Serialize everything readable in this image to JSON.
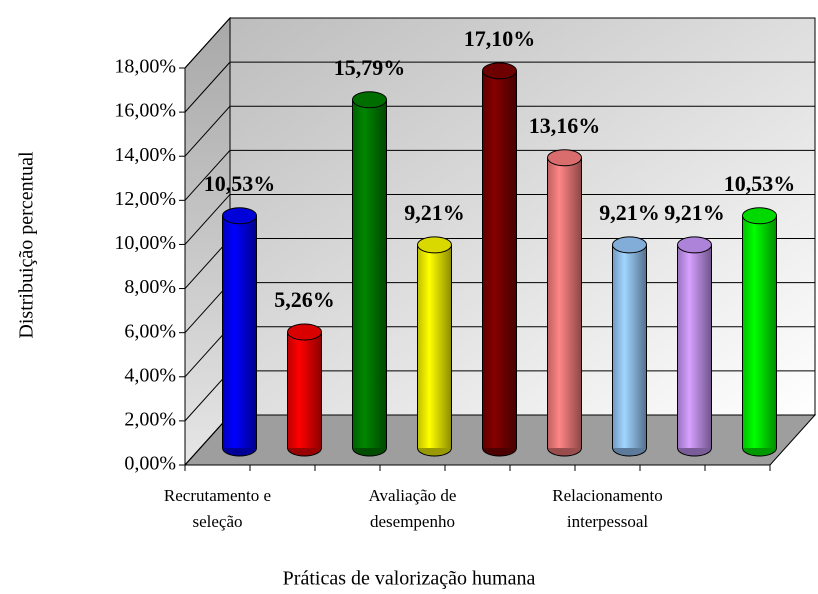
{
  "chart_data": {
    "type": "bar3d",
    "y_axis_label": "Distribuição percentual",
    "x_axis_label": "Práticas de valorização humana",
    "categories": [
      "Recrutamento e seleção",
      null,
      null,
      "Avaliação de desempenho",
      null,
      null,
      "Relacionamento interpessoal",
      null,
      null
    ],
    "values": [
      10.53,
      5.26,
      15.79,
      9.21,
      17.1,
      13.16,
      9.21,
      9.21,
      10.53
    ],
    "value_labels": [
      "10,53%",
      "5,26%",
      "15,79%",
      "9,21%",
      "17,10%",
      "13,16%",
      "9,21%",
      "9,21%",
      "10,53%"
    ],
    "colors": [
      "#0000ff",
      "#ff0000",
      "#008000",
      "#ffff00",
      "#800000",
      "#ff8080",
      "#99ccff",
      "#cc99ff",
      "#00ff00"
    ],
    "ylim": [
      0,
      18
    ],
    "yticks": [
      {
        "value": 0,
        "label": "0,00%"
      },
      {
        "value": 2,
        "label": "2,00%"
      },
      {
        "value": 4,
        "label": "4,00%"
      },
      {
        "value": 6,
        "label": "6,00%"
      },
      {
        "value": 8,
        "label": "8,00%"
      },
      {
        "value": 10,
        "label": "10,00%"
      },
      {
        "value": 12,
        "label": "12,00%"
      },
      {
        "value": 14,
        "label": "14,00%"
      },
      {
        "value": 16,
        "label": "16,00%"
      },
      {
        "value": 18,
        "label": "18,00%"
      }
    ],
    "grid": true
  }
}
